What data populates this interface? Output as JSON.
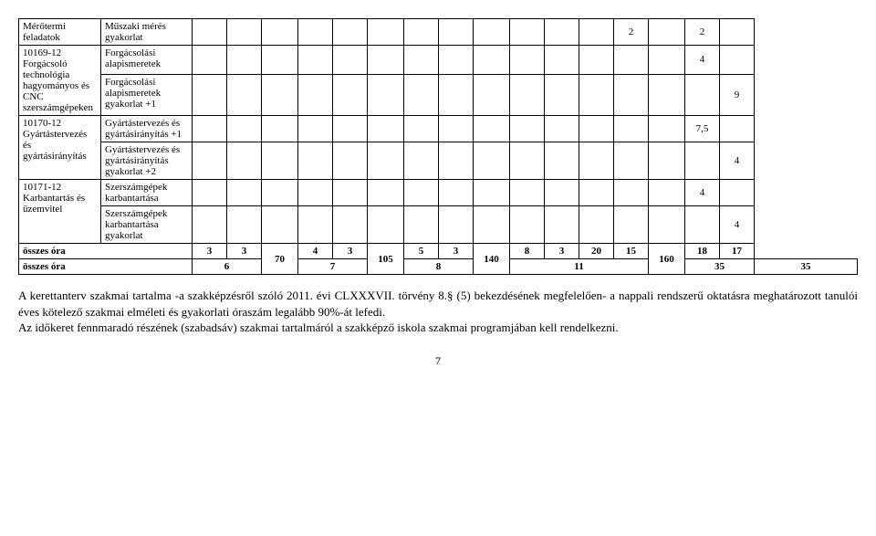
{
  "table": {
    "rows": [
      {
        "col0": "Mérőtermi feladatok",
        "col1": "Műszaki mérés gyakorlat",
        "cells": [
          "",
          "",
          "",
          "",
          "",
          "",
          "",
          "",
          "",
          "",
          "",
          "",
          "2",
          "",
          "2",
          "",
          "",
          ""
        ]
      },
      {
        "col0_group": "10169-12\nForgácsoló technológia hagyományos és CNC szerszámgépeken",
        "col1": "Forgácsolási alapismeretek",
        "cells": [
          "",
          "",
          "",
          "",
          "",
          "",
          "",
          "",
          "",
          "",
          "",
          "",
          "",
          "",
          "",
          "",
          "4",
          ""
        ]
      },
      {
        "col1": "Forgácsolási alapismeretek gyakorlat +1",
        "cells": [
          "",
          "",
          "",
          "",
          "",
          "",
          "",
          "",
          "",
          "",
          "",
          "",
          "",
          "",
          "",
          "",
          "",
          "9"
        ]
      },
      {
        "col0_group": "10170-12\nGyártástervezés és gyártásirányítás",
        "col1": "Gyártástervezés és gyártásirányítás +1",
        "cells": [
          "",
          "",
          "",
          "",
          "",
          "",
          "",
          "",
          "",
          "",
          "",
          "",
          "",
          "",
          "",
          "",
          "7,5",
          ""
        ]
      },
      {
        "col1": "Gyártástervezés és gyártásirányítás gyakorlat  +2",
        "cells": [
          "",
          "",
          "",
          "",
          "",
          "",
          "",
          "",
          "",
          "",
          "",
          "",
          "",
          "",
          "",
          "",
          "",
          "4"
        ]
      },
      {
        "col0_group": "10171-12\nKarbantartás és üzemvitel",
        "col1": "Szerszámgépek karbantartása",
        "cells": [
          "",
          "",
          "",
          "",
          "",
          "",
          "",
          "",
          "",
          "",
          "",
          "",
          "",
          "",
          "",
          "",
          "4",
          ""
        ]
      },
      {
        "col1": "Szerszámgépek karbantartása gyakorlat",
        "cells": [
          "",
          "",
          "",
          "",
          "",
          "",
          "",
          "",
          "",
          "",
          "",
          "",
          "",
          "",
          "",
          "",
          "",
          "4"
        ]
      }
    ],
    "sum1": {
      "label": "összes óra",
      "cells": [
        "3",
        "3",
        "70",
        "4",
        "3",
        "105",
        "5",
        "3",
        "140",
        "8",
        "3",
        "20",
        "15",
        "160",
        "18",
        "17"
      ]
    },
    "sum2": {
      "label": "összes óra",
      "cells": [
        "6",
        "7",
        "8",
        "11",
        "35",
        "35"
      ]
    }
  },
  "paragraph": {
    "p1": "A kerettanterv szakmai tartalma -a szakképzésről szóló 2011. évi CLXXXVII. törvény 8.§ (5) bekezdésének megfelelően- a nappali rendszerű oktatásra meghatározott tanulói éves kötelező szakmai elméleti és gyakorlati óraszám legalább 90%-át lefedi.",
    "p2": "Az időkeret fennmaradó részének (szabadsáv) szakmai tartalmáról a szakképző iskola szakmai programjában kell rendelkezni."
  },
  "page_number": "7"
}
